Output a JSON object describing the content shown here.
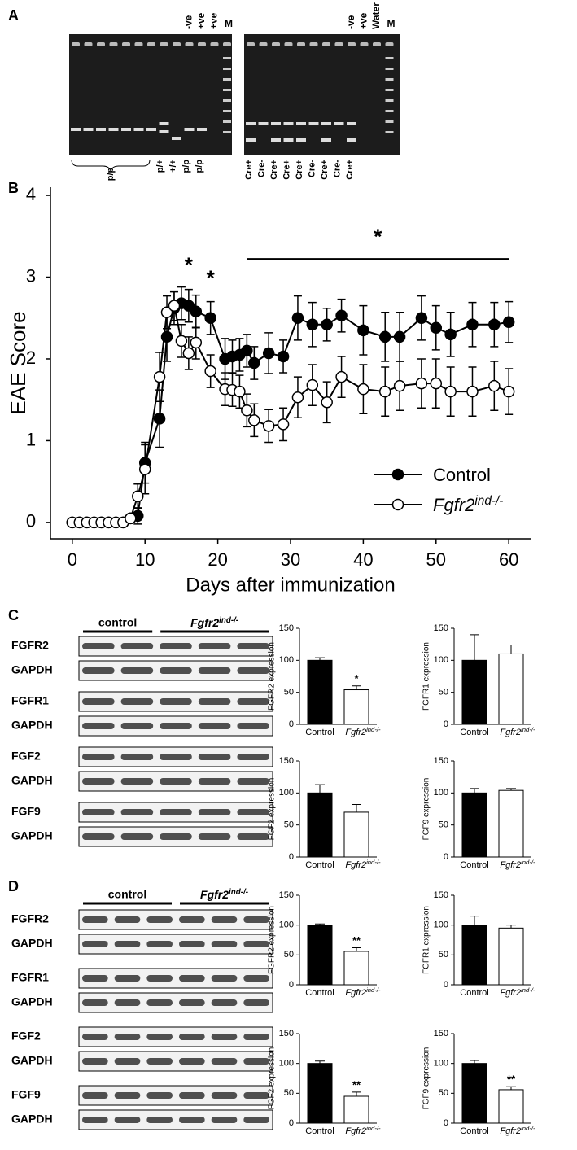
{
  "panels": {
    "a": "A",
    "b": "B",
    "c": "C",
    "d": "D"
  },
  "gel": {
    "left_top": [
      "-ve",
      "+ve",
      "+ve",
      "M"
    ],
    "left_bottom": [
      "p/+",
      "+/+",
      "p/p",
      "p/p"
    ],
    "left_brace": "p/p",
    "right_top": [
      "-ve",
      "+ve",
      "Water",
      "M"
    ],
    "right_bottom": [
      "Cre+",
      "Cre-",
      "Cre+",
      "Cre+",
      "Cre+",
      "Cre-",
      "Cre+",
      "Cre-",
      "Cre+"
    ]
  },
  "blots": [
    {
      "groups": [
        "control",
        "Fgfr2ind-/-"
      ],
      "rows": [
        "FGFR2",
        "GAPDH",
        "FGFR1",
        "GAPDH",
        "FGF2",
        "GAPDH",
        "FGF9",
        "GAPDH"
      ]
    },
    {
      "groups": [
        "control",
        "Fgfr2ind-/-"
      ],
      "rows": [
        "FGFR2",
        "GAPDH",
        "FGFR1",
        "GAPDH",
        "FGF2",
        "GAPDH",
        "FGF9",
        "GAPDH"
      ]
    }
  ],
  "chart_data": [
    {
      "type": "line",
      "xlabel": "Days after immunization",
      "ylabel": "EAE Score",
      "x": [
        0,
        1,
        2,
        3,
        4,
        5,
        6,
        7,
        8,
        9,
        10,
        12,
        13,
        14,
        15,
        16,
        17,
        19,
        21,
        22,
        23,
        24,
        25,
        27,
        29,
        31,
        33,
        35,
        37,
        40,
        43,
        45,
        48,
        50,
        52,
        55,
        58,
        60
      ],
      "series": [
        {
          "name": "Control",
          "color": "#000000",
          "fill": "#000000",
          "values": [
            0,
            0,
            0,
            0,
            0,
            0,
            0,
            0,
            0.05,
            0.08,
            0.73,
            1.27,
            2.27,
            2.62,
            2.68,
            2.65,
            2.58,
            2.5,
            2.0,
            2.03,
            2.05,
            2.1,
            1.95,
            2.07,
            2.03,
            2.5,
            2.42,
            2.42,
            2.53,
            2.35,
            2.27,
            2.27,
            2.5,
            2.38,
            2.3,
            2.42,
            2.42,
            2.45
          ],
          "errors": [
            0,
            0,
            0,
            0,
            0,
            0,
            0,
            0,
            0.05,
            0.1,
            0.25,
            0.35,
            0.3,
            0.2,
            0.2,
            0.2,
            0.2,
            0.2,
            0.25,
            0.2,
            0.2,
            0.2,
            0.2,
            0.25,
            0.2,
            0.27,
            0.27,
            0.2,
            0.2,
            0.3,
            0.3,
            0.3,
            0.27,
            0.27,
            0.27,
            0.27,
            0.27,
            0.25
          ]
        },
        {
          "name": "Fgfr2ind-/-",
          "color": "#000000",
          "fill": "#ffffff",
          "values": [
            0,
            0,
            0,
            0,
            0,
            0,
            0,
            0,
            0.05,
            0.32,
            0.65,
            1.78,
            2.57,
            2.65,
            2.22,
            2.07,
            2.2,
            1.85,
            1.63,
            1.62,
            1.6,
            1.37,
            1.25,
            1.18,
            1.2,
            1.53,
            1.68,
            1.47,
            1.78,
            1.63,
            1.6,
            1.67,
            1.7,
            1.7,
            1.6,
            1.6,
            1.67,
            1.6
          ],
          "errors": [
            0,
            0,
            0,
            0,
            0,
            0,
            0,
            0,
            0.05,
            0.15,
            0.3,
            0.3,
            0.2,
            0.18,
            0.2,
            0.2,
            0.2,
            0.2,
            0.2,
            0.2,
            0.2,
            0.2,
            0.2,
            0.2,
            0.2,
            0.25,
            0.25,
            0.25,
            0.25,
            0.3,
            0.3,
            0.3,
            0.3,
            0.3,
            0.3,
            0.3,
            0.3,
            0.28
          ]
        }
      ],
      "xlim": [
        -3,
        63
      ],
      "xticks": [
        0,
        10,
        20,
        30,
        40,
        50,
        60
      ],
      "ylim": [
        -0.2,
        4.1
      ],
      "yticks": [
        0,
        1,
        2,
        3,
        4
      ],
      "legend": "lower right",
      "annotations": [
        {
          "text": "*",
          "x": 16,
          "y": 3.13
        },
        {
          "text": "*",
          "x": 19,
          "y": 2.97
        },
        {
          "text": "*",
          "x": [
            24,
            60
          ],
          "y": 3.22
        }
      ]
    },
    {
      "type": "bar",
      "ylabel": "FGFR2 expression",
      "categories": [
        "Control",
        "Fgfr2ind-/-"
      ],
      "values": [
        100,
        54
      ],
      "errors": [
        4,
        6
      ],
      "colors": [
        "#000000",
        "#ffffff"
      ],
      "ylim": [
        0,
        150
      ],
      "yticks": [
        0,
        50,
        100,
        150
      ],
      "annotations": [
        {
          "text": "*",
          "category": 1
        }
      ]
    },
    {
      "type": "bar",
      "ylabel": "FGFR1 expression",
      "categories": [
        "Control",
        "Fgfr2ind-/-"
      ],
      "values": [
        100,
        110
      ],
      "errors": [
        40,
        14
      ],
      "colors": [
        "#000000",
        "#ffffff"
      ],
      "ylim": [
        0,
        150
      ],
      "yticks": [
        0,
        50,
        100,
        150
      ],
      "annotations": []
    },
    {
      "type": "bar",
      "ylabel": "FGF2 expression",
      "categories": [
        "Control",
        "Fgfr2ind-/-"
      ],
      "values": [
        100,
        70
      ],
      "errors": [
        13,
        12
      ],
      "colors": [
        "#000000",
        "#ffffff"
      ],
      "ylim": [
        0,
        150
      ],
      "yticks": [
        0,
        50,
        100,
        150
      ],
      "annotations": []
    },
    {
      "type": "bar",
      "ylabel": "FGF9 expression",
      "categories": [
        "Control",
        "Fgfr2ind-/-"
      ],
      "values": [
        100,
        104
      ],
      "errors": [
        7,
        3
      ],
      "colors": [
        "#000000",
        "#ffffff"
      ],
      "ylim": [
        0,
        150
      ],
      "yticks": [
        0,
        50,
        100,
        150
      ],
      "annotations": []
    },
    {
      "type": "bar",
      "ylabel": "FGFR2 expression",
      "categories": [
        "Control",
        "Fgfr2ind-/-"
      ],
      "values": [
        100,
        56
      ],
      "errors": [
        2,
        6
      ],
      "colors": [
        "#000000",
        "#ffffff"
      ],
      "ylim": [
        0,
        150
      ],
      "yticks": [
        0,
        50,
        100,
        150
      ],
      "annotations": [
        {
          "text": "**",
          "category": 1
        }
      ]
    },
    {
      "type": "bar",
      "ylabel": "FGFR1 expression",
      "categories": [
        "Control",
        "Fgfr2ind-/-"
      ],
      "values": [
        100,
        95
      ],
      "errors": [
        15,
        5
      ],
      "colors": [
        "#000000",
        "#ffffff"
      ],
      "ylim": [
        0,
        150
      ],
      "yticks": [
        0,
        50,
        100,
        150
      ],
      "annotations": []
    },
    {
      "type": "bar",
      "ylabel": "FGF2 expression",
      "categories": [
        "Control",
        "Fgfr2ind-/-"
      ],
      "values": [
        100,
        45
      ],
      "errors": [
        4,
        7
      ],
      "colors": [
        "#000000",
        "#ffffff"
      ],
      "ylim": [
        0,
        150
      ],
      "yticks": [
        0,
        50,
        100,
        150
      ],
      "annotations": [
        {
          "text": "**",
          "category": 1
        }
      ]
    },
    {
      "type": "bar",
      "ylabel": "FGF9 expression",
      "categories": [
        "Control",
        "Fgfr2ind-/-"
      ],
      "values": [
        100,
        56
      ],
      "errors": [
        5,
        5
      ],
      "colors": [
        "#000000",
        "#ffffff"
      ],
      "ylim": [
        0,
        150
      ],
      "yticks": [
        0,
        50,
        100,
        150
      ],
      "annotations": [
        {
          "text": "**",
          "category": 1
        }
      ]
    }
  ]
}
